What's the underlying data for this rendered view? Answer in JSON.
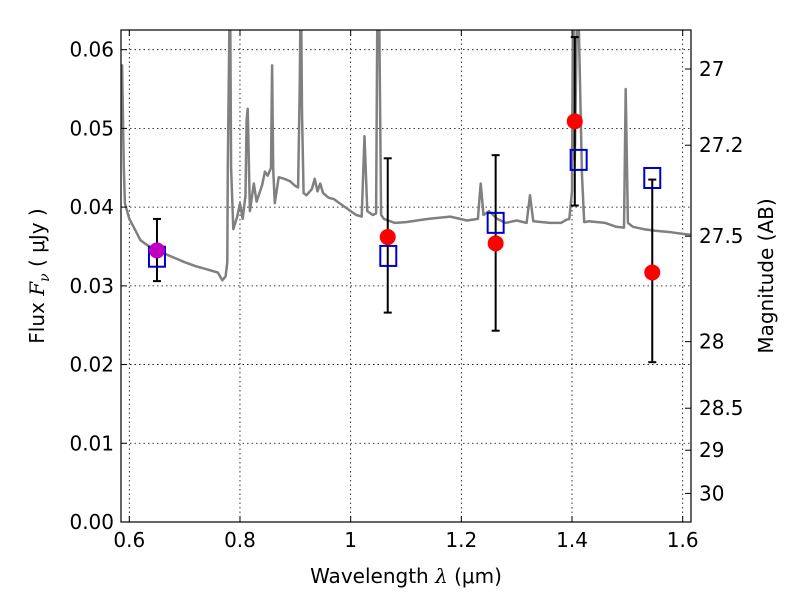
{
  "chart_data": {
    "type": "scatter",
    "title": "",
    "xlabel": "Wavelength  λ (μm)",
    "xlabel_parts": {
      "text": "Wavelength  ",
      "symbol": "λ",
      "unit": " (μm)"
    },
    "ylabel": "Flux  Fν  ( μJy )",
    "ylabel_parts": {
      "text": "Flux  ",
      "symbol": "F",
      "subscript": "ν",
      "unit": "  ( μJy )"
    },
    "y2label": "Magnitude (AB)",
    "xlim": [
      0.585,
      1.615
    ],
    "ylim": [
      0.0,
      0.0625
    ],
    "grid": true,
    "x_ticks": [
      {
        "value": 0.6,
        "label": "0.6"
      },
      {
        "value": 0.8,
        "label": "0.8"
      },
      {
        "value": 1.0,
        "label": "1"
      },
      {
        "value": 1.2,
        "label": "1.2"
      },
      {
        "value": 1.4,
        "label": "1.4"
      },
      {
        "value": 1.6,
        "label": "1.6"
      }
    ],
    "y_ticks": [
      {
        "value": 0.0,
        "label": "0.00"
      },
      {
        "value": 0.01,
        "label": "0.01"
      },
      {
        "value": 0.02,
        "label": "0.02"
      },
      {
        "value": 0.03,
        "label": "0.03"
      },
      {
        "value": 0.04,
        "label": "0.04"
      },
      {
        "value": 0.05,
        "label": "0.05"
      },
      {
        "value": 0.06,
        "label": "0.06"
      }
    ],
    "y2_ticks": [
      {
        "value": 27.0,
        "label": "27"
      },
      {
        "value": 27.2,
        "label": "27.2"
      },
      {
        "value": 27.5,
        "label": "27.5"
      },
      {
        "value": 28.0,
        "label": "28"
      },
      {
        "value": 28.5,
        "label": "28.5"
      },
      {
        "value": 29.0,
        "label": "29"
      },
      {
        "value": 30.0,
        "label": "30"
      }
    ],
    "series": [
      {
        "kind": "line",
        "color": "#808080",
        "x": [
          0.586,
          0.587,
          0.59,
          0.592,
          0.596,
          0.6,
          0.61,
          0.62,
          0.64,
          0.66,
          0.68,
          0.7,
          0.72,
          0.74,
          0.76,
          0.768,
          0.774,
          0.777,
          0.778,
          0.782,
          0.784,
          0.788,
          0.795,
          0.8,
          0.805,
          0.81,
          0.812,
          0.814,
          0.818,
          0.825,
          0.83,
          0.84,
          0.845,
          0.85,
          0.856,
          0.858,
          0.86,
          0.863,
          0.87,
          0.88,
          0.89,
          0.9,
          0.905,
          0.908,
          0.91,
          0.912,
          0.915,
          0.92,
          0.93,
          0.935,
          0.94,
          0.945,
          0.95,
          0.96,
          0.97,
          0.98,
          0.99,
          1.0,
          1.01,
          1.02,
          1.025,
          1.03,
          1.04,
          1.046,
          1.048,
          1.05,
          1.052,
          1.055,
          1.06,
          1.08,
          1.1,
          1.14,
          1.18,
          1.21,
          1.23,
          1.235,
          1.24,
          1.25,
          1.265,
          1.28,
          1.3,
          1.318,
          1.324,
          1.33,
          1.36,
          1.38,
          1.39,
          1.395,
          1.4,
          1.402,
          1.405,
          1.41,
          1.418,
          1.422,
          1.43,
          1.46,
          1.48,
          1.494,
          1.497,
          1.501,
          1.51,
          1.53,
          1.55,
          1.58,
          1.6,
          1.614
        ],
        "y": [
          0.05,
          0.058,
          0.045,
          0.0405,
          0.0395,
          0.0385,
          0.0372,
          0.0358,
          0.0348,
          0.0342,
          0.0336,
          0.033,
          0.0325,
          0.0321,
          0.0317,
          0.0307,
          0.0312,
          0.033,
          0.045,
          0.07,
          0.045,
          0.0372,
          0.0388,
          0.0405,
          0.0385,
          0.0415,
          0.051,
          0.0525,
          0.0395,
          0.043,
          0.0407,
          0.0428,
          0.0445,
          0.044,
          0.045,
          0.058,
          0.0448,
          0.0405,
          0.0438,
          0.0436,
          0.0433,
          0.0427,
          0.0425,
          0.055,
          0.07,
          0.052,
          0.0418,
          0.0415,
          0.0423,
          0.0436,
          0.042,
          0.043,
          0.0418,
          0.0412,
          0.041,
          0.0405,
          0.04,
          0.0395,
          0.039,
          0.0388,
          0.049,
          0.0395,
          0.039,
          0.0392,
          0.062,
          0.07,
          0.062,
          0.039,
          0.0385,
          0.038,
          0.0381,
          0.0385,
          0.0388,
          0.0383,
          0.0385,
          0.043,
          0.039,
          0.0395,
          0.0385,
          0.038,
          0.0383,
          0.038,
          0.0415,
          0.0382,
          0.038,
          0.038,
          0.0384,
          0.0385,
          0.042,
          0.07,
          0.046,
          0.07,
          0.044,
          0.0381,
          0.0382,
          0.038,
          0.0375,
          0.0374,
          0.055,
          0.038,
          0.0375,
          0.0372,
          0.037,
          0.0368,
          0.0366,
          0.0365
        ]
      },
      {
        "kind": "marker-square",
        "color": "#0000cc",
        "x": [
          0.65,
          1.068,
          1.262,
          1.412,
          1.545
        ],
        "y": [
          0.0337,
          0.0338,
          0.038,
          0.046,
          0.0437
        ]
      },
      {
        "kind": "marker-circle",
        "color": "#ff0000",
        "x": [
          1.067,
          1.262,
          1.405,
          1.545
        ],
        "y": [
          0.0362,
          0.0354,
          0.0509,
          0.0317
        ],
        "yerr_low": [
          0.0266,
          0.0243,
          0.0402,
          0.0203
        ],
        "yerr_high": [
          0.0462,
          0.0466,
          0.0616,
          0.0435
        ]
      },
      {
        "kind": "marker-circle",
        "color": "#bf00bf",
        "x": [
          0.65
        ],
        "y": [
          0.0345
        ],
        "yerr_low": [
          0.0306
        ],
        "yerr_high": [
          0.0385
        ]
      }
    ]
  }
}
